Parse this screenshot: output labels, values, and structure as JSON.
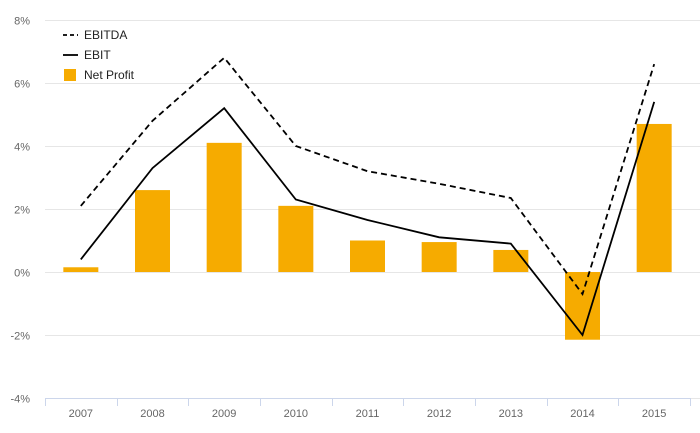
{
  "chart_data": {
    "type": "bar",
    "categories": [
      "2007",
      "2008",
      "2009",
      "2010",
      "2011",
      "2012",
      "2013",
      "2014",
      "2015"
    ],
    "ylim": [
      -4,
      8
    ],
    "yticks": [
      -4,
      -2,
      0,
      2,
      4,
      6,
      8
    ],
    "y_tick_labels": [
      "-4%",
      "-2%",
      "0%",
      "2%",
      "4%",
      "6%",
      "8%"
    ],
    "grid": true,
    "legend_position": "top-left",
    "series": [
      {
        "name": "EBITDA",
        "type": "line",
        "style": "dashed",
        "color": "#000000",
        "values": [
          2.1,
          4.8,
          6.8,
          4.0,
          3.2,
          2.8,
          2.35,
          -0.7,
          6.6
        ]
      },
      {
        "name": "EBIT",
        "type": "line",
        "style": "solid",
        "color": "#000000",
        "values": [
          0.4,
          3.3,
          5.2,
          2.3,
          1.65,
          1.1,
          0.9,
          -2.0,
          5.4
        ]
      },
      {
        "name": "Net Profit",
        "type": "bar",
        "color": "#f6ab00",
        "values": [
          0.15,
          2.6,
          4.1,
          2.1,
          1.0,
          0.95,
          0.7,
          -2.15,
          4.7
        ]
      }
    ]
  }
}
